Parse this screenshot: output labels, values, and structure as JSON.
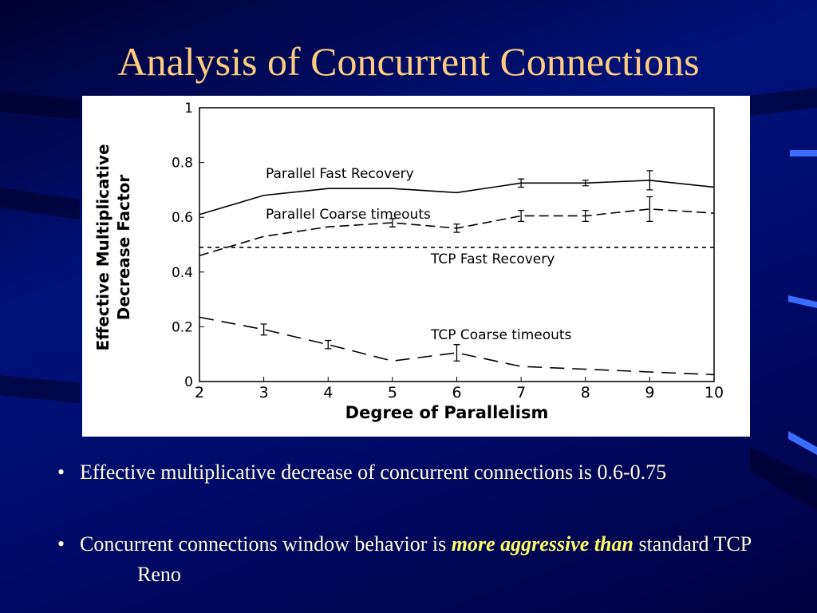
{
  "title": "Analysis of Concurrent Connections",
  "bullets": [
    {
      "marker": "•",
      "text": "Effective multiplicative decrease of concurrent connections is 0.6-0.75"
    },
    {
      "marker": "•",
      "text": "Concurrent connections window behavior is",
      "emphasis": "more aggressive than",
      "rest": "standard TCP Reno"
    }
  ],
  "chart_data": {
    "type": "line",
    "xlabel": "Degree of Parallelism",
    "ylabel": [
      "Effective Multiplicative",
      "Decrease Factor"
    ],
    "x": [
      2,
      3,
      4,
      5,
      6,
      7,
      8,
      9,
      10
    ],
    "xlim": [
      2,
      10
    ],
    "xticks": [
      2,
      3,
      4,
      5,
      6,
      7,
      8,
      9,
      10
    ],
    "ylim": [
      0,
      1
    ],
    "yticks": [
      0,
      0.2,
      0.4,
      0.6,
      0.8,
      1
    ],
    "series": [
      {
        "name": "Parallel Fast Recovery",
        "color": "#000000",
        "dash": "solid",
        "values": [
          0.61,
          0.68,
          0.705,
          0.705,
          0.69,
          0.725,
          0.725,
          0.735,
          0.71
        ],
        "errors": [
          null,
          null,
          null,
          null,
          null,
          0.015,
          0.01,
          0.035,
          null
        ]
      },
      {
        "name": "Parallel Coarse timeouts",
        "color": "#000000",
        "dash": "dashed",
        "values": [
          0.46,
          0.53,
          0.565,
          0.58,
          0.56,
          0.605,
          0.605,
          0.63,
          0.615
        ],
        "errors": [
          null,
          null,
          null,
          0.015,
          0.015,
          0.02,
          0.02,
          0.045,
          null
        ]
      },
      {
        "name": "TCP Fast Recovery",
        "color": "#000000",
        "dash": "dotted",
        "values": [
          0.49,
          0.49,
          0.49,
          0.49,
          0.49,
          0.49,
          0.49,
          0.49,
          0.49
        ],
        "errors": [
          null,
          null,
          null,
          null,
          null,
          null,
          null,
          null,
          null
        ]
      },
      {
        "name": "TCP Coarse timeouts",
        "color": "#000000",
        "dash": "longdash",
        "values": [
          0.235,
          0.19,
          0.135,
          0.075,
          0.105,
          0.055,
          0.045,
          0.035,
          0.025
        ],
        "errors": [
          null,
          0.02,
          0.015,
          null,
          0.03,
          null,
          null,
          null,
          null
        ]
      }
    ]
  }
}
